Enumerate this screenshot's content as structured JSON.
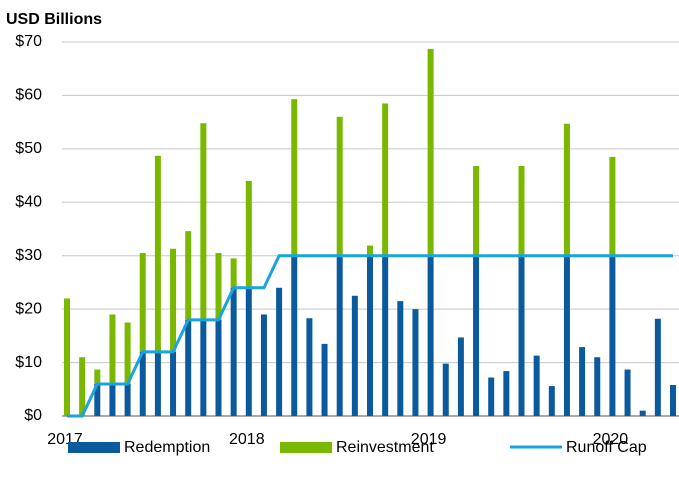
{
  "chart_data": {
    "type": "stacked_bar_line",
    "y_axis_label": "USD Billions",
    "categories": [
      "2017",
      null,
      null,
      null,
      null,
      null,
      null,
      null,
      null,
      null,
      null,
      null,
      "2018",
      null,
      null,
      null,
      null,
      null,
      null,
      null,
      null,
      null,
      null,
      null,
      "2019",
      null,
      null,
      null,
      null,
      null,
      null,
      null,
      null,
      null,
      null,
      null,
      "2020",
      null,
      null,
      null,
      null
    ],
    "series": [
      {
        "name": "Redemption",
        "color": "#0b5a9e",
        "kind": "bar",
        "values": [
          0,
          0,
          6,
          6,
          6,
          12,
          12,
          12,
          18,
          18,
          18,
          24,
          24,
          19,
          24,
          30,
          18.3,
          13.5,
          30,
          22.5,
          30,
          30,
          21.5,
          20,
          30,
          9.8,
          14.7,
          30,
          7.2,
          8.4,
          30,
          11.3,
          5.6,
          30,
          12.9,
          11,
          30,
          8.7,
          1,
          18.2,
          5.8
        ]
      },
      {
        "name": "Reinvestment",
        "color": "#7ab800",
        "kind": "bar",
        "values": [
          22,
          11,
          2.7,
          13,
          11.5,
          18.5,
          36.7,
          19.3,
          16.6,
          36.8,
          12.5,
          5.5,
          20,
          0,
          0,
          29.3,
          0,
          0,
          26,
          0,
          1.9,
          28.5,
          0,
          0,
          38.7,
          0,
          0,
          16.8,
          0,
          0,
          16.8,
          0,
          0,
          24.7,
          0,
          0,
          18.5,
          0,
          0,
          0,
          0
        ]
      },
      {
        "name": "Runoff Cap",
        "color": "#1aa3dc",
        "kind": "line",
        "values": [
          0,
          0,
          6,
          6,
          6,
          12,
          12,
          12,
          18,
          18,
          18,
          24,
          24,
          24,
          30,
          30,
          30,
          30,
          30,
          30,
          30,
          30,
          30,
          30,
          30,
          30,
          30,
          30,
          30,
          30,
          30,
          30,
          30,
          30,
          30,
          30,
          30,
          30,
          30,
          30,
          30
        ]
      }
    ],
    "ylim": [
      0,
      70
    ],
    "yticks": [
      {
        "value": 0,
        "label": "$0"
      },
      {
        "value": 10,
        "label": "$10"
      },
      {
        "value": 20,
        "label": "$20"
      },
      {
        "value": 30,
        "label": "$30"
      },
      {
        "value": 40,
        "label": "$40"
      },
      {
        "value": 50,
        "label": "$50"
      },
      {
        "value": 60,
        "label": "$60"
      },
      {
        "value": 70,
        "label": "$70"
      }
    ],
    "grid": true
  }
}
